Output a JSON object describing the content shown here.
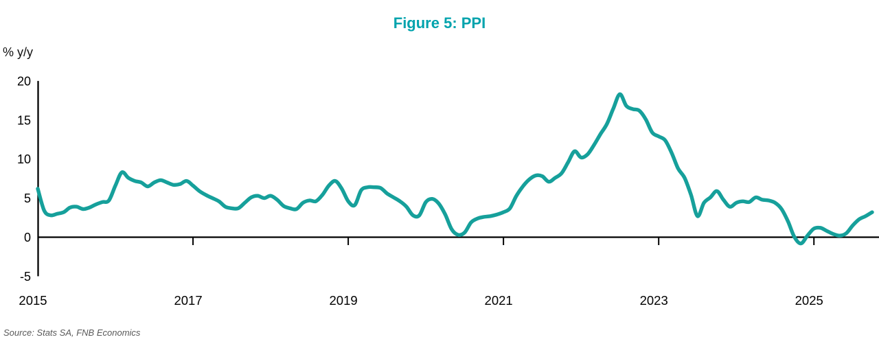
{
  "title": "Figure 5: PPI",
  "y_axis_label": "% y/y",
  "source": "Source: Stats SA, FNB Economics",
  "colors": {
    "title": "#00A3AD",
    "line": "#16A09B",
    "axis": "#000000",
    "source_text": "#595959"
  },
  "chart_data": {
    "type": "line",
    "title": "Figure 5: PPI",
    "ylabel": "% y/y",
    "xlabel": "",
    "frequency": "monthly",
    "x_range": [
      "2015-01",
      "2025-10"
    ],
    "x_tick_labels": [
      "2015",
      "2017",
      "2019",
      "2021",
      "2023",
      "2025"
    ],
    "y_ticks": [
      20,
      15,
      10,
      5,
      0,
      -5
    ],
    "ylim": [
      -5,
      20
    ],
    "grid": false,
    "legend_position": "none",
    "axis_crosses_at_zero": true,
    "series": [
      {
        "name": "PPI % y/y",
        "color": "#16A09B",
        "values": [
          6.2,
          3.4,
          2.8,
          3.0,
          3.2,
          3.8,
          3.9,
          3.6,
          3.8,
          4.2,
          4.5,
          4.7,
          6.6,
          8.3,
          7.6,
          7.2,
          7.0,
          6.5,
          7.0,
          7.3,
          7.0,
          6.7,
          6.8,
          7.2,
          6.6,
          5.9,
          5.4,
          5.0,
          4.6,
          3.9,
          3.7,
          3.7,
          4.4,
          5.1,
          5.3,
          5.0,
          5.3,
          4.8,
          4.0,
          3.7,
          3.6,
          4.4,
          4.7,
          4.6,
          5.4,
          6.6,
          7.2,
          6.2,
          4.6,
          4.1,
          6.0,
          6.4,
          6.4,
          6.3,
          5.6,
          5.1,
          4.6,
          3.9,
          2.8,
          2.8,
          4.5,
          4.9,
          4.3,
          2.9,
          1.0,
          0.3,
          0.6,
          1.9,
          2.4,
          2.6,
          2.7,
          2.9,
          3.2,
          3.7,
          5.3,
          6.5,
          7.4,
          7.9,
          7.8,
          7.1,
          7.6,
          8.2,
          9.6,
          11.0,
          10.2,
          10.6,
          11.8,
          13.2,
          14.5,
          16.5,
          18.3,
          16.8,
          16.4,
          16.2,
          15.1,
          13.4,
          12.9,
          12.4,
          10.8,
          8.8,
          7.6,
          5.4,
          2.7,
          4.4,
          5.1,
          5.9,
          4.8,
          3.9,
          4.4,
          4.6,
          4.5,
          5.1,
          4.8,
          4.7,
          4.4,
          3.6,
          2.0,
          0.0,
          -0.8,
          0.2,
          1.1,
          1.2,
          0.8,
          0.4,
          0.2,
          0.5,
          1.5,
          2.3,
          2.7,
          3.2
        ]
      }
    ],
    "source": "Source: Stats SA, FNB Economics"
  }
}
